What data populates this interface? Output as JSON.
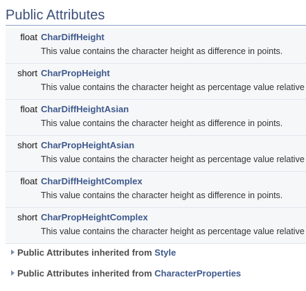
{
  "section": {
    "title": "Public Attributes"
  },
  "attributes": [
    {
      "type": "float",
      "name": "CharDiffHeight",
      "description": "This value contains the character height as difference in points."
    },
    {
      "type": "short",
      "name": "CharPropHeight",
      "description": "This value contains the character height as percentage value relative"
    },
    {
      "type": "float",
      "name": "CharDiffHeightAsian",
      "description": "This value contains the character height as difference in points."
    },
    {
      "type": "short",
      "name": "CharPropHeightAsian",
      "description": "This value contains the character height as percentage value relative"
    },
    {
      "type": "float",
      "name": "CharDiffHeightComplex",
      "description": "This value contains the character height as difference in points."
    },
    {
      "type": "short",
      "name": "CharPropHeightComplex",
      "description": "This value contains the character height as percentage value relative"
    }
  ],
  "inherited": [
    {
      "prefix": "Public Attributes inherited from ",
      "link": "Style",
      "icon": "triangle-right-icon"
    },
    {
      "prefix": "Public Attributes inherited from ",
      "link": "CharacterProperties",
      "icon": "triangle-right-icon"
    }
  ],
  "colors": {
    "title": "#3b4f7a",
    "link": "#3f5a8c",
    "row_bg": "#f6f7f9"
  }
}
